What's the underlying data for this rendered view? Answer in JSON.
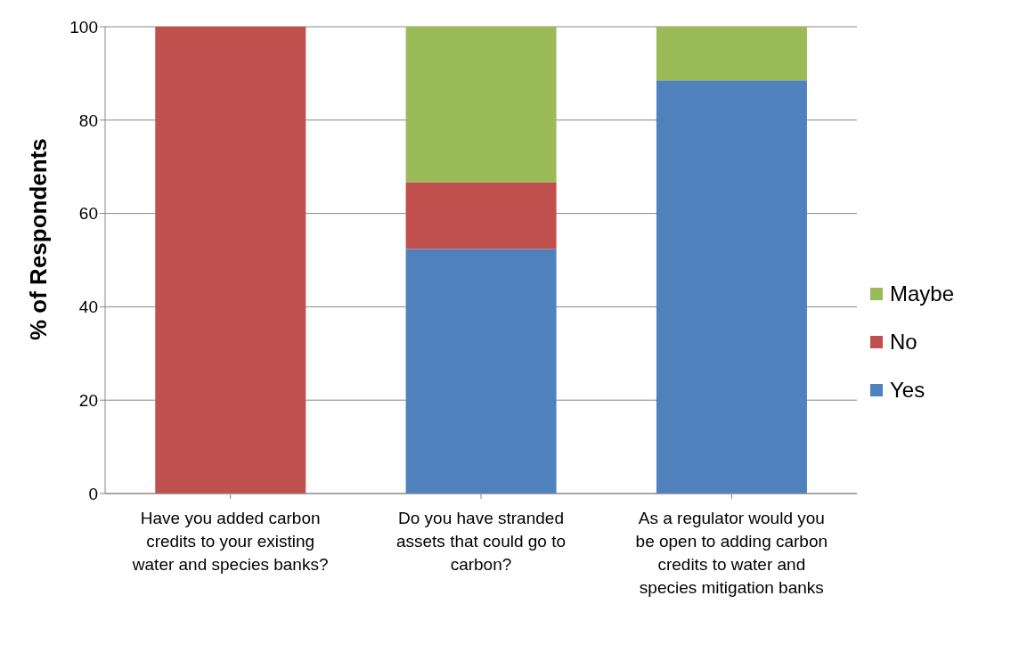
{
  "chart_data": {
    "type": "bar",
    "stacked": true,
    "ylabel": "% of Respondents",
    "categories": [
      "Have you added carbon credits to your existing water and species banks?",
      "Do you have stranded assets that could go to carbon?",
      "As a regulator would you be open to adding carbon credits to water and species mitigation banks"
    ],
    "series": [
      {
        "name": "Yes",
        "color": "#4f81bd",
        "values": [
          0,
          52.4,
          88.5
        ]
      },
      {
        "name": "No",
        "color": "#c0504d",
        "values": [
          100,
          14.3,
          0
        ]
      },
      {
        "name": "Maybe",
        "color": "#9bbb59",
        "values": [
          0,
          33.3,
          11.5
        ]
      }
    ],
    "ylim": [
      0,
      100
    ],
    "yticks": [
      0,
      20,
      40,
      60,
      80,
      100
    ],
    "grid": "y",
    "legend": "right"
  }
}
